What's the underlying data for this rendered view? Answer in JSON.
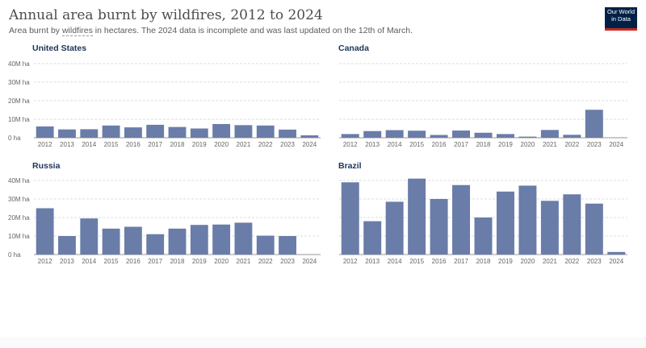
{
  "header": {
    "title": "Annual area burnt by wildfires, 2012 to 2024",
    "subtitle_before": "Area burnt by ",
    "subtitle_term": "wildfires",
    "subtitle_after": " in hectares. The 2024 data is incomplete and was last updated on the 12th of March."
  },
  "logo": {
    "line1": "Our World",
    "line2": "in Data"
  },
  "colors": {
    "bar": "#6a7ca8",
    "grid": "#dddddd",
    "axis": "#666666",
    "panel_title": "#1d3557"
  },
  "chart_data": [
    {
      "type": "bar",
      "title": "United States",
      "categories": [
        "2012",
        "2013",
        "2014",
        "2015",
        "2016",
        "2017",
        "2018",
        "2019",
        "2020",
        "2021",
        "2022",
        "2023",
        "2024"
      ],
      "values": [
        6.1,
        4.5,
        4.6,
        6.6,
        5.6,
        7.0,
        5.8,
        5.0,
        7.4,
        6.8,
        6.6,
        4.4,
        1.3
      ],
      "yticks": [
        "0 ha",
        "10M ha",
        "20M ha",
        "30M ha",
        "40M ha"
      ],
      "ylim": [
        0,
        40000000
      ],
      "unit": "ha"
    },
    {
      "type": "bar",
      "title": "Canada",
      "categories": [
        "2012",
        "2013",
        "2014",
        "2015",
        "2016",
        "2017",
        "2018",
        "2019",
        "2020",
        "2021",
        "2022",
        "2023",
        "2024"
      ],
      "values": [
        2.0,
        3.6,
        4.1,
        3.8,
        1.5,
        3.9,
        2.7,
        2.0,
        0.6,
        4.2,
        1.6,
        15.1,
        0.1
      ],
      "ylim": [
        0,
        40000000
      ],
      "unit": "ha"
    },
    {
      "type": "bar",
      "title": "Russia",
      "categories": [
        "2012",
        "2013",
        "2014",
        "2015",
        "2016",
        "2017",
        "2018",
        "2019",
        "2020",
        "2021",
        "2022",
        "2023",
        "2024"
      ],
      "values": [
        25.0,
        10.0,
        19.5,
        14.0,
        15.0,
        11.0,
        14.0,
        16.0,
        16.2,
        17.2,
        10.2,
        10.0,
        0
      ],
      "yticks": [
        "0 ha",
        "10M ha",
        "20M ha",
        "30M ha",
        "40M ha"
      ],
      "ylim": [
        0,
        40000000
      ],
      "unit": "ha"
    },
    {
      "type": "bar",
      "title": "Brazil",
      "categories": [
        "2012",
        "2013",
        "2014",
        "2015",
        "2016",
        "2017",
        "2018",
        "2019",
        "2020",
        "2021",
        "2022",
        "2023",
        "2024"
      ],
      "values": [
        39.0,
        18.0,
        28.5,
        41.0,
        30.0,
        37.5,
        20.0,
        34.0,
        37.2,
        29.0,
        32.5,
        27.5,
        1.4
      ],
      "ylim": [
        0,
        40000000
      ],
      "unit": "ha"
    }
  ]
}
